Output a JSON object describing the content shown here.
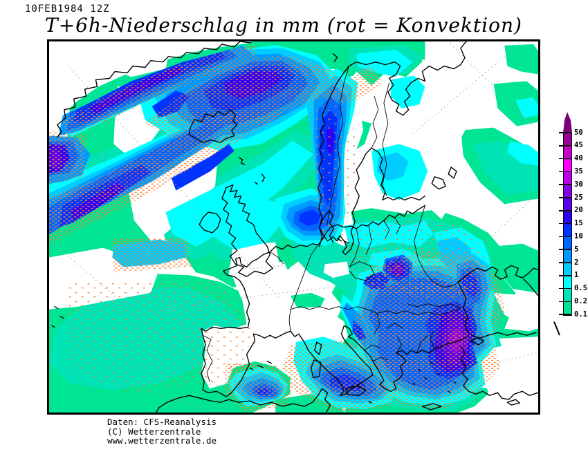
{
  "header": {
    "date_label": "10FEB1984 12Z",
    "title": "T+6h-Niederschlag in mm (rot = Konvektion)"
  },
  "footer": {
    "lines": [
      "Daten: CFS-Reanalysis",
      "(C) Wetterzentrale",
      "www.wetterzentrale.de"
    ]
  },
  "legend": {
    "tick_values": [
      "50",
      "45",
      "40",
      "35",
      "30",
      "25",
      "20",
      "15",
      "10",
      "5",
      "2",
      "1",
      "0.5",
      "0.2",
      "0.1"
    ],
    "cell_colors": [
      "#990099",
      "#CC00CC",
      "#FF00FF",
      "#BB00EE",
      "#8800E8",
      "#5A00EE",
      "#2E00F5",
      "#0033FF",
      "#0066FF",
      "#0099FF",
      "#00CCFF",
      "#00FFFF",
      "#00E3B5",
      "#00E593"
    ],
    "arrow_color": "#7A0078"
  },
  "map": {
    "background_color": "#FFFFFF",
    "coastline_color": "#000000",
    "graticule_color": "#ADADAD",
    "convection_color": "#F08438",
    "level_colors": {
      "0.1": "#00E593",
      "0.2": "#00E3B5",
      "0.5": "#00FFFF",
      "1": "#00CCFF",
      "2": "#0099FF",
      "5": "#0066FF",
      "10": "#0033FF",
      "15": "#2E00F5",
      "20": "#5A00EE",
      "25": "#8800E8"
    }
  }
}
